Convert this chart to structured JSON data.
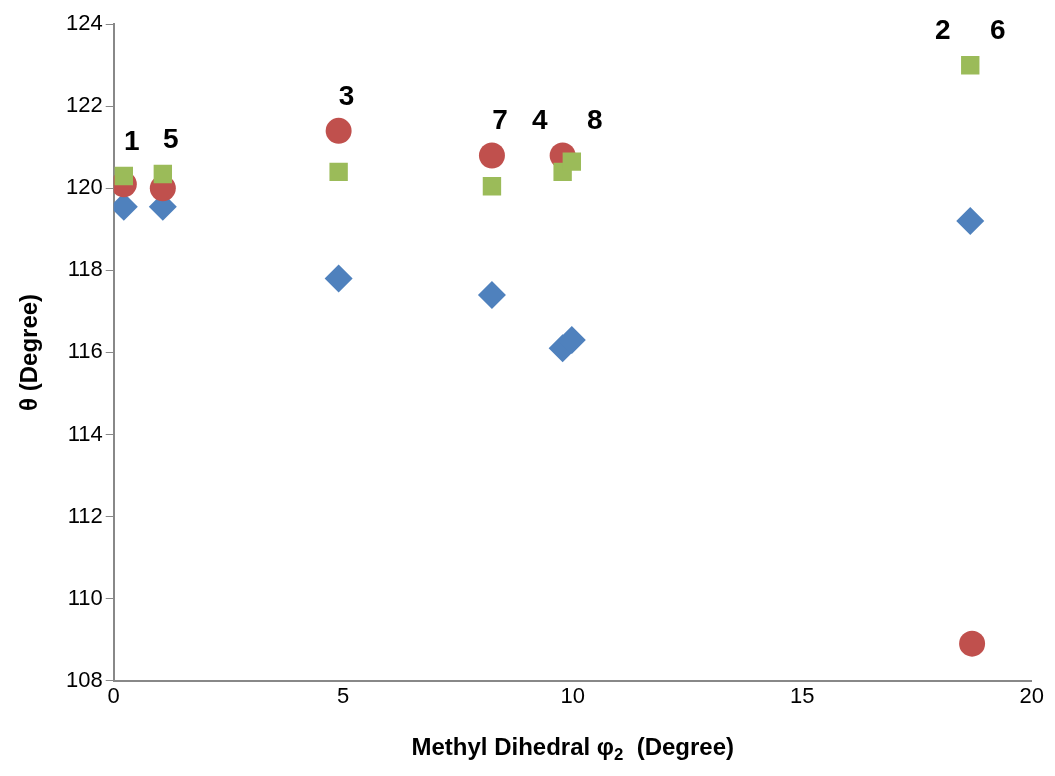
{
  "chart_data": {
    "type": "scatter",
    "xlabel": "Methyl Dihedral φ$_{2}$  (Degree)",
    "ylabel": "θ (Degree)",
    "xlim": [
      0,
      20
    ],
    "xticks": [
      0,
      5,
      10,
      15,
      20
    ],
    "ylim": [
      108,
      124
    ],
    "yticks": [
      108,
      110,
      112,
      114,
      116,
      118,
      120,
      122,
      124
    ],
    "grid": false,
    "legend": false,
    "series": [
      {
        "color": "#4f81bd",
        "marker": "diamond",
        "x": [
          0.22,
          1.07,
          4.9,
          8.24,
          9.78,
          9.98,
          18.66
        ],
        "values": [
          119.55,
          119.55,
          117.8,
          117.4,
          116.1,
          116.3,
          119.2
        ]
      },
      {
        "color": "#c0504d",
        "marker": "circle",
        "x": [
          0.22,
          1.07,
          4.9,
          8.24,
          9.78,
          18.7
        ],
        "values": [
          120.1,
          120.0,
          121.4,
          120.8,
          120.8,
          108.9
        ]
      },
      {
        "color": "#9bbb59",
        "marker": "square",
        "x": [
          0.22,
          1.07,
          4.9,
          8.24,
          9.78,
          9.98,
          18.66
        ],
        "values": [
          120.3,
          120.35,
          120.4,
          120.05,
          120.4,
          120.65,
          123.0
        ]
      }
    ],
    "annotations": [
      {
        "text": "1",
        "x": 0.22,
        "y": 120.3
      },
      {
        "text": "5",
        "x": 1.07,
        "y": 120.35
      },
      {
        "text": "3",
        "x": 4.9,
        "y": 121.4
      },
      {
        "text": "7",
        "x": 8.24,
        "y": 120.8
      },
      {
        "text": "4",
        "x": 9.78,
        "y": 120.8
      },
      {
        "text": "8",
        "x": 9.98,
        "y": 120.65
      },
      {
        "text": "2",
        "x": 18.66,
        "y": 123.0
      },
      {
        "text": "6",
        "x": 18.66,
        "y": 123.0
      }
    ]
  }
}
